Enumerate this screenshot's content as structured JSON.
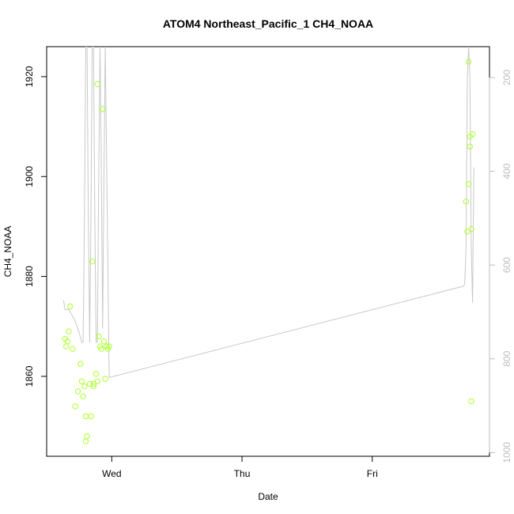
{
  "chart_data": {
    "type": "scatter",
    "title": "ATOM4 Northeast_Pacific_1 CH4_NOAA",
    "xlabel": "Date",
    "ylabel": "CH4_NOAA",
    "x_ticks": [
      {
        "t": 0.0,
        "label": "Wed"
      },
      {
        "t": 1.0,
        "label": "Thu"
      },
      {
        "t": 2.0,
        "label": "Fri"
      }
    ],
    "xlim": [
      -0.5,
      2.9
    ],
    "ylim": [
      1844,
      1926
    ],
    "y_ticks": [
      1860,
      1880,
      1900,
      1920
    ],
    "y2_ticks": [
      200,
      400,
      600,
      800,
      1000
    ],
    "y2lim": [
      1008,
      134
    ],
    "grid": false,
    "colors": {
      "points": "#adff2f",
      "line": "#c8c8c8",
      "right_axis": "#bdbdbd",
      "frame": "#000000"
    },
    "series": [
      {
        "kind": "points",
        "x": [
          -0.36,
          -0.35,
          -0.34,
          -0.33,
          -0.32,
          -0.3,
          -0.28,
          -0.26,
          -0.24,
          -0.23,
          -0.22,
          -0.21,
          -0.2,
          -0.2,
          -0.19,
          -0.17,
          -0.16,
          -0.15,
          -0.14,
          -0.14,
          -0.12,
          -0.11,
          -0.11,
          -0.1,
          -0.09,
          -0.08,
          -0.07,
          -0.06,
          -0.05,
          -0.04,
          -0.03,
          -0.02,
          2.72,
          2.73,
          2.74,
          2.74,
          2.75,
          2.75,
          2.76,
          2.76,
          2.77
        ],
        "y": [
          1867.5,
          1866.0,
          1867.0,
          1869.0,
          1874.0,
          1865.5,
          1854.0,
          1857.0,
          1862.5,
          1859.0,
          1856.0,
          1858.0,
          1847.0,
          1852.0,
          1848.0,
          1858.5,
          1852.0,
          1883.0,
          1858.5,
          1858.0,
          1860.5,
          1918.5,
          1859.0,
          1868.0,
          1866.0,
          1865.5,
          1913.5,
          1867.0,
          1859.5,
          1866.0,
          1865.5,
          1866.0,
          1895.0,
          1889.0,
          1898.5,
          1923.0,
          1906.0,
          1908.0,
          1855.0,
          1889.5,
          1908.5
        ]
      },
      {
        "kind": "line",
        "axis": "right",
        "x": [
          -0.37,
          -0.36,
          -0.33,
          -0.28,
          -0.25,
          -0.23,
          -0.22,
          -0.21,
          -0.2,
          -0.19,
          -0.18,
          -0.17,
          -0.16,
          -0.15,
          -0.14,
          -0.13,
          -0.12,
          -0.11,
          -0.1,
          -0.09,
          -0.08,
          -0.07,
          -0.06,
          -0.05,
          -0.02,
          2.7,
          2.71,
          2.72,
          2.73,
          2.74,
          2.75,
          2.76,
          2.77,
          2.78
        ],
        "y": [
          675,
          695,
          695,
          720,
          745,
          765,
          765,
          500,
          134,
          134,
          500,
          765,
          500,
          134,
          134,
          500,
          765,
          765,
          400,
          134,
          400,
          735,
          400,
          134,
          840,
          645,
          640,
          560,
          200,
          134,
          200,
          560,
          680,
          392
        ]
      }
    ]
  }
}
